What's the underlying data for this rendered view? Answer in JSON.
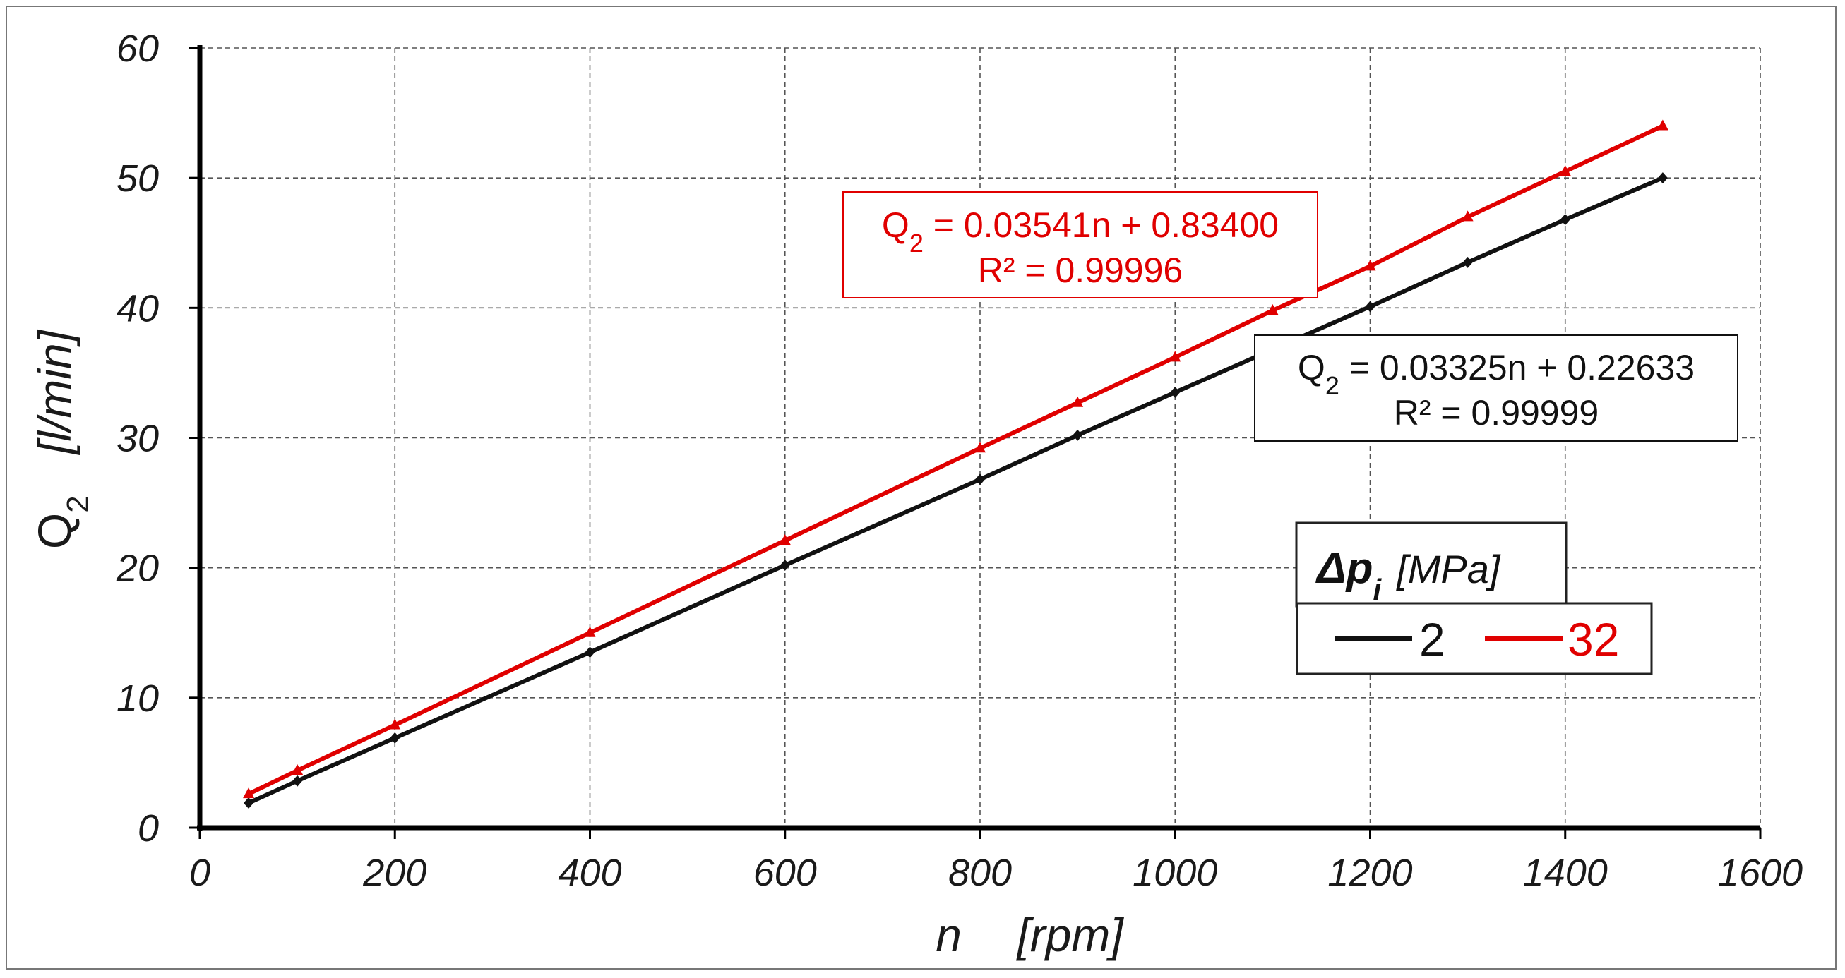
{
  "chart_data": {
    "type": "line",
    "title": "",
    "xlabel": {
      "symbol": "n",
      "unit": "[rpm]"
    },
    "ylabel": {
      "symbol": "Q",
      "subscript": "2",
      "unit": "[l/min]"
    },
    "xlim": [
      0,
      1600
    ],
    "ylim": [
      0,
      60
    ],
    "xticks": [
      0,
      200,
      400,
      600,
      800,
      1000,
      1200,
      1400,
      1600
    ],
    "yticks": [
      0,
      10,
      20,
      30,
      40,
      50,
      60
    ],
    "grid": true,
    "legend": {
      "title_symbol": "Δp",
      "title_subscript": "i",
      "title_unit": "[MPa]",
      "placement": "right"
    },
    "series": [
      {
        "name": "2",
        "color": "#111111",
        "marker": "diamond",
        "x": [
          50,
          100,
          200,
          400,
          600,
          800,
          900,
          1000,
          1200,
          1300,
          1400,
          1500
        ],
        "y": [
          1.9,
          3.6,
          6.9,
          13.5,
          20.2,
          26.8,
          30.2,
          33.5,
          40.1,
          43.5,
          46.8,
          50.0
        ],
        "trendline": {
          "eq_symbol": "Q",
          "eq_subscript": "2",
          "eq_rest": " = 0.03325n + 0.22633",
          "r2": "R² = 0.99999"
        }
      },
      {
        "name": "32",
        "color": "#e00000",
        "marker": "triangle",
        "x": [
          50,
          100,
          200,
          400,
          600,
          800,
          900,
          1000,
          1100,
          1200,
          1300,
          1400,
          1500
        ],
        "y": [
          2.6,
          4.4,
          7.9,
          15.0,
          22.1,
          29.2,
          32.7,
          36.2,
          39.8,
          43.2,
          47.0,
          50.5,
          54.0
        ],
        "trendline": {
          "eq_symbol": "Q",
          "eq_subscript": "2",
          "eq_rest": " = 0.03541n + 0.83400",
          "r2": "R² = 0.99996"
        }
      }
    ]
  }
}
